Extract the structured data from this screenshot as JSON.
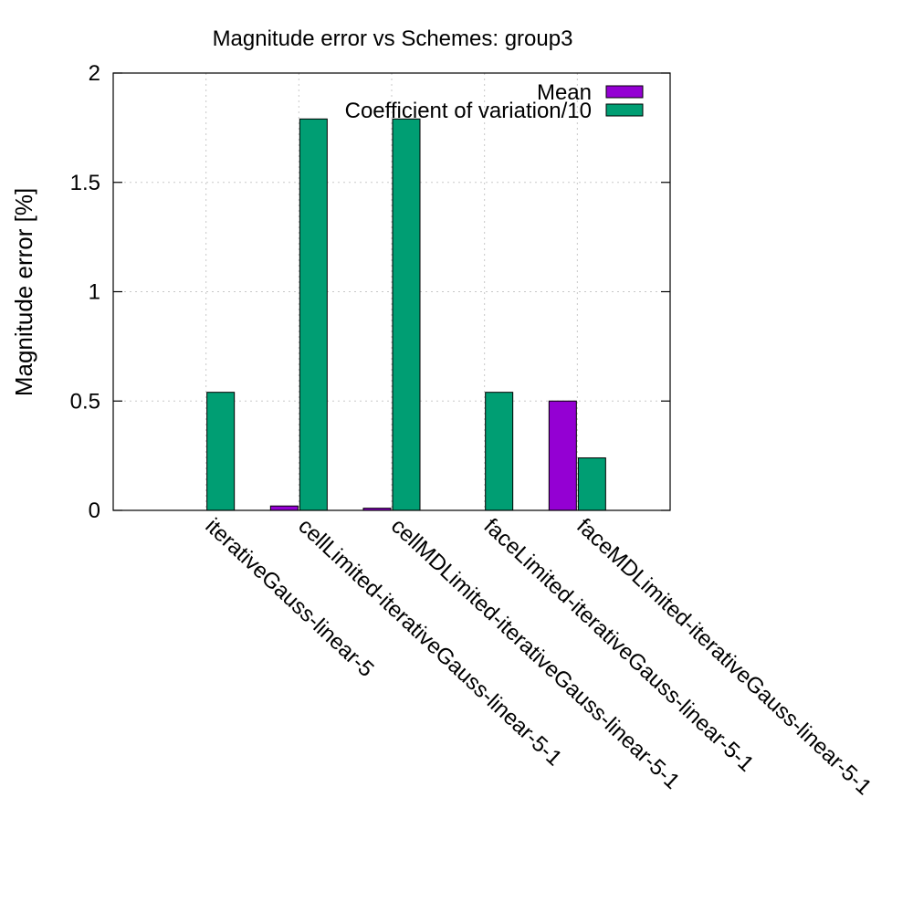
{
  "chart_data": {
    "type": "bar",
    "title": "Magnitude error vs Schemes: group3",
    "xlabel": "",
    "ylabel": "Magnitude error [%]",
    "ylim": [
      0,
      2
    ],
    "yticks": [
      0,
      0.5,
      1,
      1.5,
      2
    ],
    "yticks_labels": [
      "0",
      "0.5",
      "1",
      "1.5",
      "2"
    ],
    "grid": true,
    "legend_position": "top-right",
    "categories": [
      "iterativeGauss-linear-5",
      "cellLimited-iterativeGauss-linear-5-1",
      "cellMDLimited-iterativeGauss-linear-5-1",
      "faceLimited-iterativeGauss-linear-5-1",
      "faceMDLimited-iterativeGauss-linear-5-1"
    ],
    "series": [
      {
        "name": "Mean",
        "color": "#9400d3",
        "values": [
          0,
          0.02,
          0.01,
          0,
          0.5
        ]
      },
      {
        "name": "Coefficient of variation/10",
        "color": "#009e73",
        "values": [
          0.54,
          1.79,
          1.79,
          0.54,
          0.24
        ]
      }
    ]
  }
}
